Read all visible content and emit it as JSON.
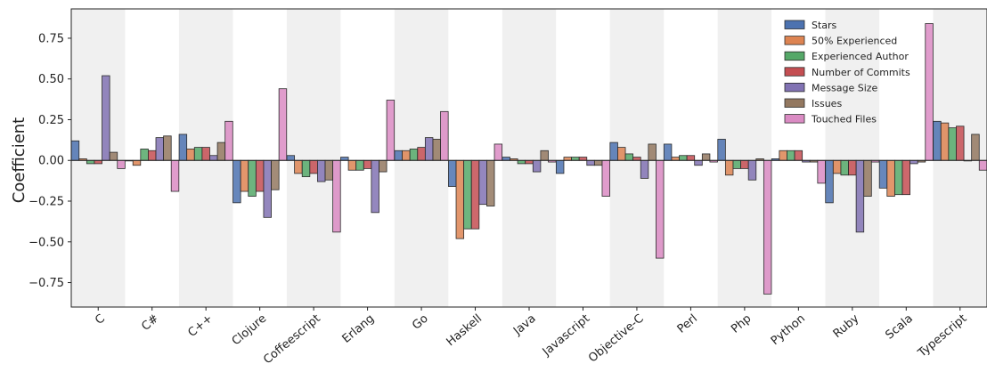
{
  "chart_data": {
    "type": "bar",
    "title": "",
    "xlabel": "",
    "ylabel": "Coefficient",
    "ylim": [
      -0.9,
      0.93
    ],
    "yticks": [
      0.75,
      0.5,
      0.25,
      0.0,
      -0.25,
      -0.5,
      -0.75
    ],
    "ytick_labels": [
      "0.75",
      "0.50",
      "0.25",
      "0.00",
      "−0.25",
      "−0.50",
      "−0.75"
    ],
    "grid": false,
    "legend_position": "top-right",
    "categories": [
      "C",
      "C#",
      "C++",
      "Clojure",
      "Coffeescript",
      "Erlang",
      "Go",
      "Haskell",
      "Java",
      "Javascript",
      "Objective-C",
      "Perl",
      "Php",
      "Python",
      "Ruby",
      "Scala",
      "Typescript"
    ],
    "shaded_categories": [
      "C",
      "C++",
      "Coffeescript",
      "Go",
      "Java",
      "Objective-C",
      "Php",
      "Ruby",
      "Typescript"
    ],
    "series": [
      {
        "name": "Stars",
        "color": "#4c72b0",
        "values": [
          0.12,
          0.0,
          0.16,
          -0.26,
          0.03,
          0.02,
          0.06,
          -0.16,
          0.02,
          -0.08,
          0.11,
          0.1,
          0.13,
          0.01,
          -0.26,
          -0.17,
          0.24
        ]
      },
      {
        "name": "50% Experienced",
        "color": "#dd8452",
        "values": [
          0.01,
          -0.03,
          0.07,
          -0.19,
          -0.08,
          -0.06,
          0.06,
          -0.48,
          0.01,
          0.02,
          0.08,
          0.02,
          -0.09,
          0.06,
          -0.08,
          -0.22,
          0.23
        ]
      },
      {
        "name": "Experienced Author",
        "color": "#55a868",
        "values": [
          -0.02,
          0.07,
          0.08,
          -0.22,
          -0.1,
          -0.06,
          0.07,
          -0.42,
          -0.02,
          0.02,
          0.04,
          0.03,
          -0.05,
          0.06,
          -0.09,
          -0.21,
          0.2
        ]
      },
      {
        "name": "Number of Commits",
        "color": "#c44e52",
        "values": [
          -0.02,
          0.06,
          0.08,
          -0.19,
          -0.08,
          -0.05,
          0.08,
          -0.42,
          -0.02,
          0.02,
          0.02,
          0.03,
          -0.05,
          0.06,
          -0.09,
          -0.21,
          0.21
        ]
      },
      {
        "name": "Message Size",
        "color": "#8172b3",
        "values": [
          0.52,
          0.14,
          0.03,
          -0.35,
          -0.13,
          -0.32,
          0.14,
          -0.27,
          -0.07,
          -0.03,
          -0.11,
          -0.03,
          -0.12,
          -0.01,
          -0.44,
          -0.02,
          0.0
        ]
      },
      {
        "name": "Issues",
        "color": "#937860",
        "values": [
          0.05,
          0.15,
          0.11,
          -0.18,
          -0.12,
          -0.07,
          0.13,
          -0.28,
          0.06,
          -0.03,
          0.1,
          0.04,
          0.01,
          -0.01,
          -0.22,
          -0.01,
          0.16
        ]
      },
      {
        "name": "Touched Files",
        "color": "#da8bc3",
        "values": [
          -0.05,
          -0.19,
          0.24,
          0.44,
          -0.44,
          0.37,
          0.3,
          0.1,
          -0.01,
          -0.22,
          -0.6,
          -0.01,
          -0.82,
          -0.14,
          -0.01,
          0.84,
          -0.06
        ]
      }
    ]
  }
}
